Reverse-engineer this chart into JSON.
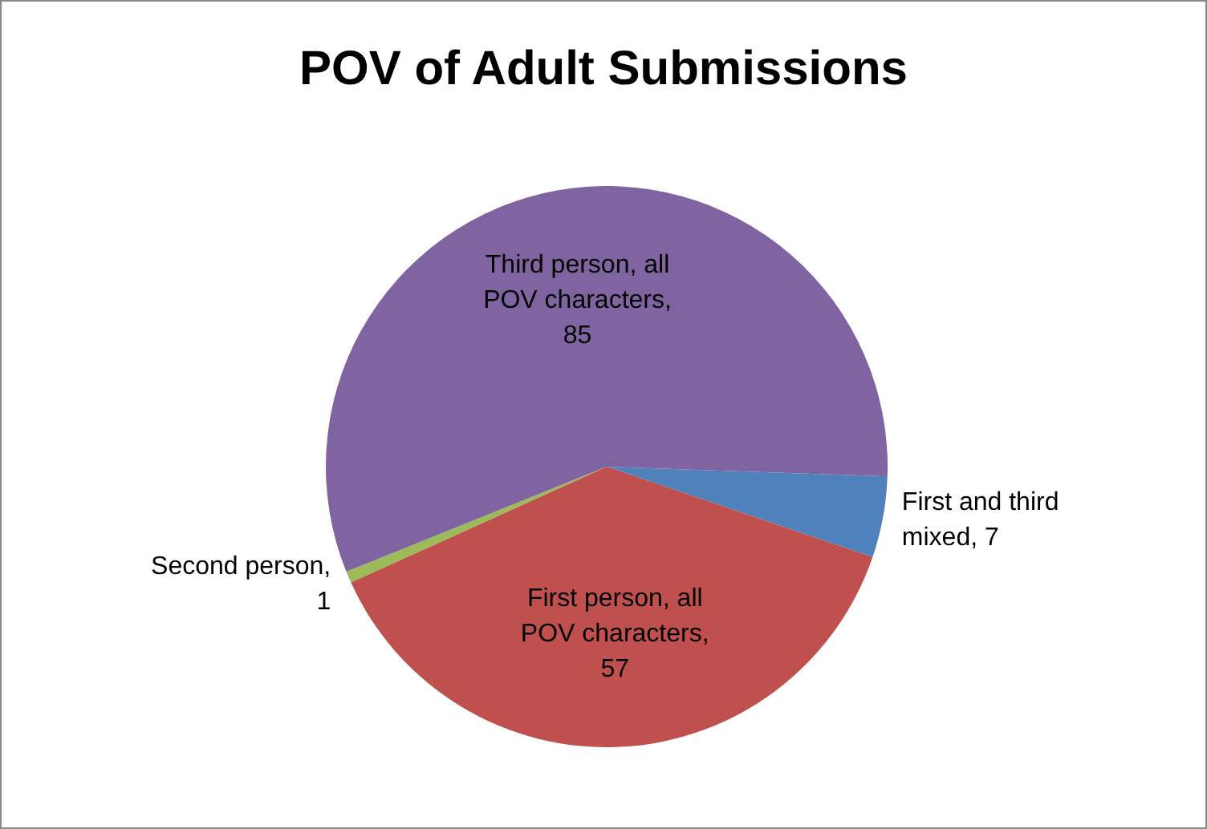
{
  "chart_data": {
    "type": "pie",
    "title": "POV of Adult Submissions",
    "categories": [
      "First and third mixed",
      "First person, all POV characters",
      "Second person",
      "Third person, all POV characters"
    ],
    "values": [
      7,
      57,
      1,
      85
    ],
    "colors": [
      "#4f81bd",
      "#c0504d",
      "#9bbb59",
      "#8064a2"
    ],
    "value_labels": [
      ", 7",
      ", 57",
      ", 1",
      ", 85"
    ],
    "legend": false
  }
}
